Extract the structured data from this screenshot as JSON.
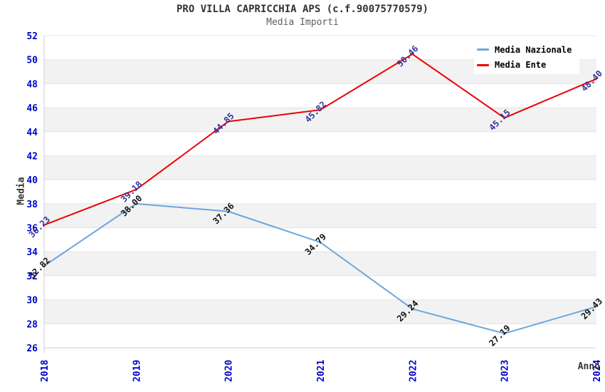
{
  "title": "PRO VILLA CAPRICCHIA APS (c.f.90075770579)",
  "subtitle": "Media Importi",
  "legend": {
    "items": [
      {
        "label": "Media Nazionale",
        "color": "#6ea6dd"
      },
      {
        "label": "Media Ente",
        "color": "#ee0000"
      }
    ]
  },
  "colors": {
    "tick_label": "#0000cc",
    "grid_line": "#e4e4e4",
    "plot_band": "#f2f2f2",
    "frame": "#cccccc",
    "title": "#333333",
    "subtitle": "#606060",
    "label_nazionale": "#111111",
    "label_ente": "#333399"
  },
  "chart_data": {
    "type": "line",
    "title": "PRO VILLA CAPRICCHIA APS (c.f.90075770579)",
    "subtitle": "Media Importi",
    "xlabel": "Anno",
    "ylabel": "Media",
    "categories": [
      "2018",
      "2019",
      "2020",
      "2021",
      "2022",
      "2023",
      "2024"
    ],
    "series": [
      {
        "name": "Media Nazionale",
        "color": "#6ea6dd",
        "label_color": "#111111",
        "values": [
          32.82,
          38.0,
          37.36,
          34.79,
          29.24,
          27.19,
          29.43
        ]
      },
      {
        "name": "Media Ente",
        "color": "#ee0000",
        "label_color": "#333399",
        "values": [
          36.23,
          39.18,
          44.85,
          45.82,
          50.46,
          45.15,
          48.4
        ]
      }
    ],
    "ylim": [
      26,
      52
    ],
    "ytick_step": 2,
    "grid": true,
    "plot_bands_alternating": true,
    "legend_position": "top-right",
    "data_labels_rotation_deg": -45,
    "x_tick_rotation_deg": -90
  }
}
